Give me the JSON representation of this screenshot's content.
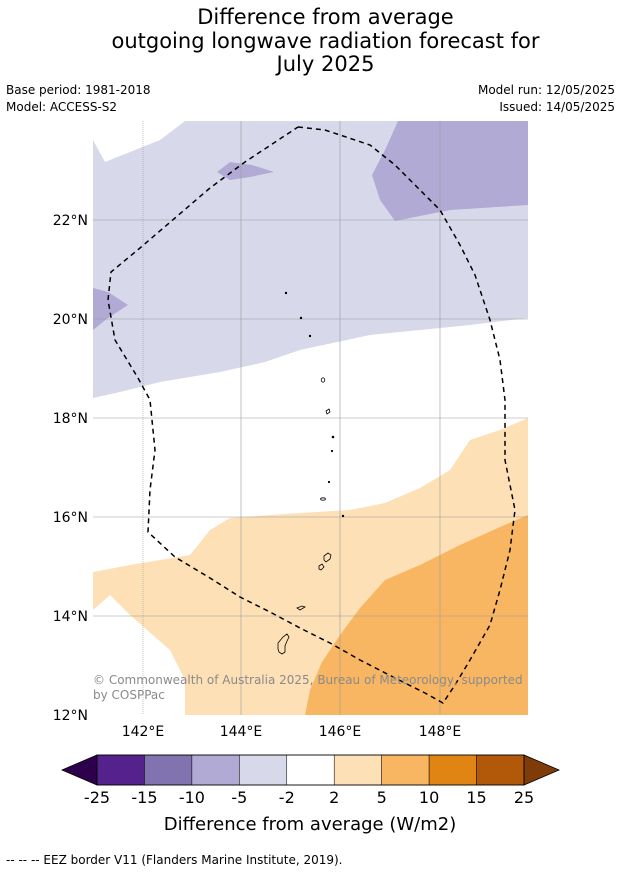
{
  "title": {
    "line1": "Difference from average",
    "line2": "outgoing longwave radiation forecast for",
    "line3": "July 2025"
  },
  "meta": {
    "base_period": "Base period: 1981-2018",
    "model": "Model: ACCESS-S2",
    "model_run": "Model run: 12/05/2025",
    "issued": "Issued: 14/05/2025"
  },
  "map": {
    "lat_labels": [
      "22°N",
      "20°N",
      "18°N",
      "16°N",
      "14°N",
      "12°N"
    ],
    "lon_labels": [
      "142°E",
      "144°E",
      "146°E",
      "148°E"
    ],
    "copyright_line1": "© Commonwealth of Australia 2025, Bureau of Meteorology, supported",
    "copyright_line2": "by COSPPac",
    "colors": {
      "neg_2_5": "#d8d8eb",
      "neg_5_10": "#b0aad4",
      "pos_2_5": "#fde0b6",
      "pos_5_10": "#f9b662",
      "neutral": "#ffffff"
    }
  },
  "colorbar": {
    "tick_labels": [
      "-25",
      "-15",
      "-10",
      "-5",
      "-2",
      "2",
      "5",
      "10",
      "15",
      "25"
    ],
    "colors": [
      "#55228d",
      "#8073b0",
      "#b0aad4",
      "#d8d8eb",
      "#ffffff",
      "#fde0b6",
      "#f9b662",
      "#e08514",
      "#b25909"
    ],
    "extend_low_color": "#2d004b",
    "extend_high_color": "#7f3b08",
    "label": "Difference from average (W/m2)"
  },
  "footer": {
    "legend": "--  --  -- EEZ border V11 (Flanders Marine Institute, 2019)."
  }
}
